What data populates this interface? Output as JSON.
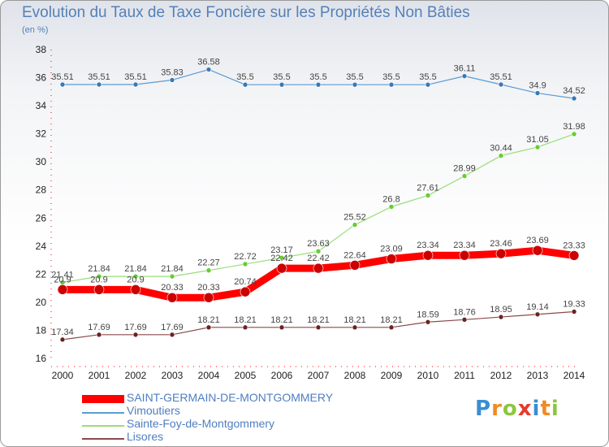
{
  "header": {
    "title": "Evolution du Taux de Taxe Foncière sur les Propriétés Non Bâties",
    "unit": "(en %)"
  },
  "brand": {
    "name": "Proxiti"
  },
  "chart_data": {
    "type": "line",
    "categories": [
      "2000",
      "2001",
      "2002",
      "2003",
      "2004",
      "2005",
      "2006",
      "2007",
      "2008",
      "2009",
      "2010",
      "2011",
      "2012",
      "2013",
      "2014"
    ],
    "ylim": [
      16,
      38
    ],
    "yticks": [
      16,
      18,
      20,
      22,
      24,
      26,
      28,
      30,
      32,
      34,
      36,
      38
    ],
    "grid": false,
    "legend_position": "bottom-left",
    "series": [
      {
        "name": "SAINT-GERMAIN-DE-MONTGOMMERY",
        "color": "#ff0000",
        "marker_color": "#cc0000",
        "line_width": 9,
        "values": [
          20.9,
          20.9,
          20.9,
          20.33,
          20.33,
          20.74,
          22.42,
          22.42,
          22.64,
          23.09,
          23.34,
          23.34,
          23.46,
          23.69,
          23.33
        ]
      },
      {
        "name": "Vimoutiers",
        "color": "#5b9bd5",
        "marker_color": "#3a78b4",
        "line_width": 1.2,
        "values": [
          35.51,
          35.51,
          35.51,
          35.83,
          36.58,
          35.5,
          35.5,
          35.5,
          35.5,
          35.5,
          35.5,
          36.11,
          35.51,
          34.9,
          34.52
        ]
      },
      {
        "name": "Sainte-Foy-de-Montgommery",
        "color": "#99dd77",
        "marker_color": "#66cc33",
        "line_width": 1.2,
        "values": [
          21.41,
          21.84,
          21.84,
          21.84,
          22.27,
          22.72,
          23.17,
          23.63,
          25.52,
          26.8,
          27.61,
          28.99,
          30.44,
          31.05,
          31.98
        ]
      },
      {
        "name": "Lisores",
        "color": "#8b4a4a",
        "marker_color": "#6b2222",
        "line_width": 1.2,
        "values": [
          17.34,
          17.69,
          17.69,
          17.69,
          18.21,
          18.21,
          18.21,
          18.21,
          18.21,
          18.21,
          18.59,
          18.76,
          18.95,
          19.14,
          19.33
        ]
      }
    ]
  }
}
